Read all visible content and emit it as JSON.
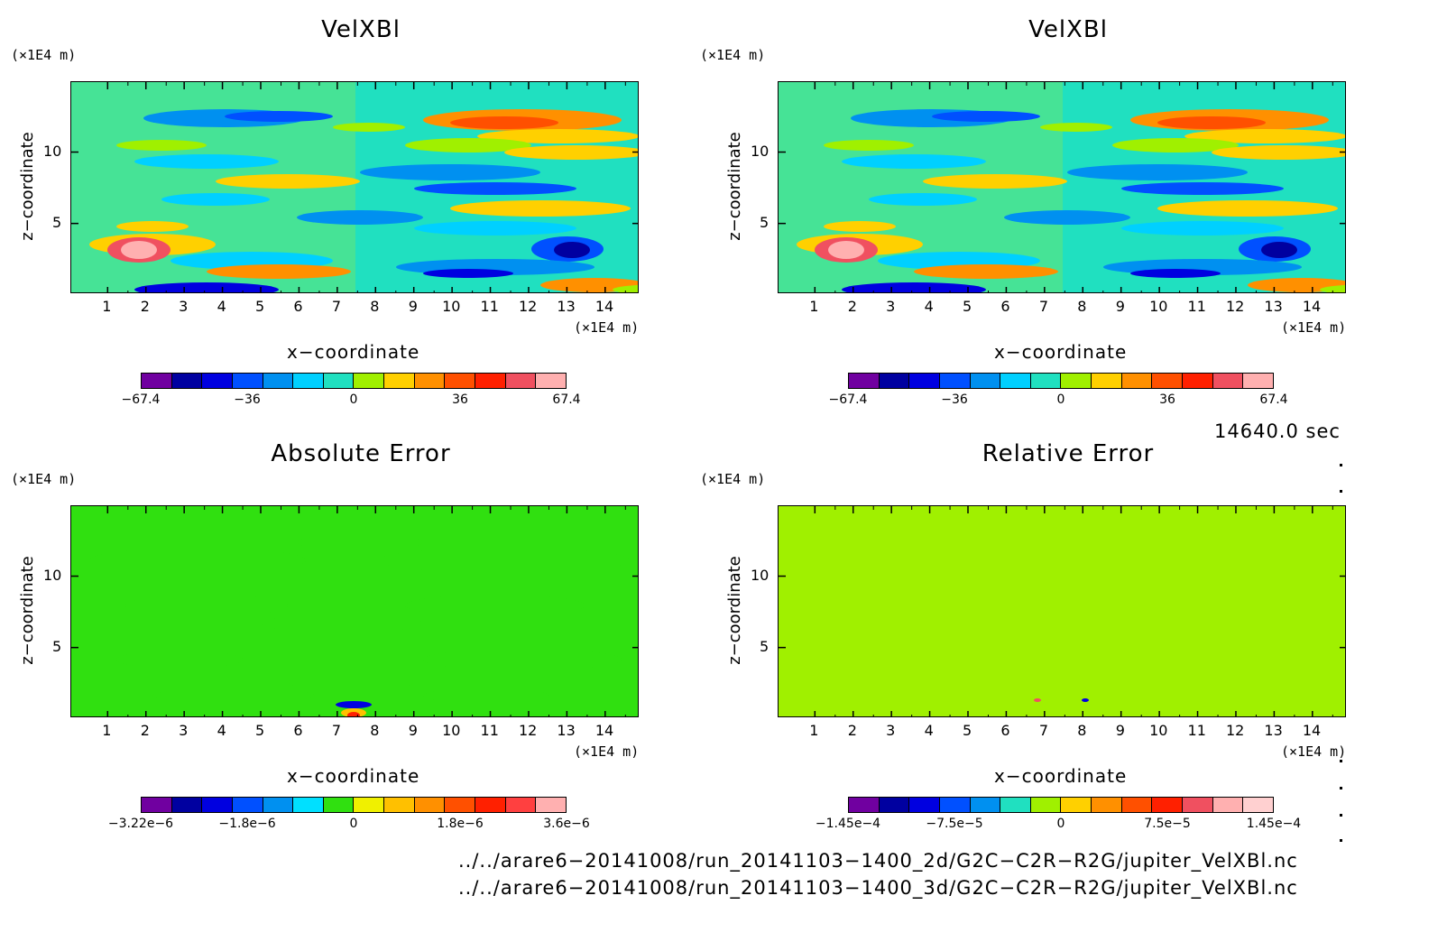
{
  "chart_data": [
    {
      "type": "heatmap",
      "title": "VelXBl",
      "xlabel": "x−coordinate",
      "ylabel": "z−coordinate",
      "x_unit": "(×1E4 m)",
      "y_unit": "(×1E4 m)",
      "xlim": [
        0.05,
        14.9
      ],
      "ylim": [
        0.05,
        14.9
      ],
      "x_ticks": [
        "1",
        "2",
        "3",
        "4",
        "5",
        "6",
        "7",
        "8",
        "9",
        "10",
        "11",
        "12",
        "13",
        "14"
      ],
      "y_ticks": [
        "5",
        "10"
      ],
      "colorbar_labels": [
        "−67.4",
        "−36",
        "0",
        "36",
        "67.4"
      ],
      "colors": [
        "#7000a0",
        "#0000a0",
        "#0000e0",
        "#0050ff",
        "#0090f0",
        "#00d0ff",
        "#20e0c0",
        "#a0f000",
        "#ffd000",
        "#ff9000",
        "#ff5000",
        "#ff2000",
        "#f05060",
        "#ffb0b0"
      ],
      "background_level": 0
    },
    {
      "type": "heatmap",
      "title": "VelXBl",
      "xlabel": "x−coordinate",
      "ylabel": "z−coordinate",
      "x_unit": "(×1E4 m)",
      "y_unit": "(×1E4 m)",
      "xlim": [
        0.05,
        14.9
      ],
      "ylim": [
        0.05,
        14.9
      ],
      "x_ticks": [
        "1",
        "2",
        "3",
        "4",
        "5",
        "6",
        "7",
        "8",
        "9",
        "10",
        "11",
        "12",
        "13",
        "14"
      ],
      "y_ticks": [
        "5",
        "10"
      ],
      "colorbar_labels": [
        "−67.4",
        "−36",
        "0",
        "36",
        "67.4"
      ],
      "colors": [
        "#7000a0",
        "#0000a0",
        "#0000e0",
        "#0050ff",
        "#0090f0",
        "#00d0ff",
        "#20e0c0",
        "#a0f000",
        "#ffd000",
        "#ff9000",
        "#ff5000",
        "#ff2000",
        "#f05060",
        "#ffb0b0"
      ],
      "background_level": 0
    },
    {
      "type": "heatmap",
      "title": "Absolute Error",
      "xlabel": "x−coordinate",
      "ylabel": "z−coordinate",
      "x_unit": "(×1E4 m)",
      "y_unit": "(×1E4 m)",
      "xlim": [
        0.05,
        14.9
      ],
      "ylim": [
        0.05,
        14.9
      ],
      "x_ticks": [
        "1",
        "2",
        "3",
        "4",
        "5",
        "6",
        "7",
        "8",
        "9",
        "10",
        "11",
        "12",
        "13",
        "14"
      ],
      "y_ticks": [
        "5",
        "10"
      ],
      "colorbar_labels": [
        "−3.22e−6",
        "−1.8e−6",
        "0",
        "1.8e−6",
        "3.6e−6"
      ],
      "colors": [
        "#7000a0",
        "#0000a0",
        "#0000e0",
        "#0050ff",
        "#0090f0",
        "#00e0ff",
        "#30e010",
        "#f0f000",
        "#ffc000",
        "#ff9000",
        "#ff5000",
        "#ff2000",
        "#ff4040",
        "#ffb0b0"
      ],
      "background_level": 0
    },
    {
      "type": "heatmap",
      "title": "Relative Error",
      "xlabel": "x−coordinate",
      "ylabel": "z−coordinate",
      "x_unit": "(×1E4 m)",
      "y_unit": "(×1E4 m)",
      "xlim": [
        0.05,
        14.9
      ],
      "ylim": [
        0.05,
        14.9
      ],
      "x_ticks": [
        "1",
        "2",
        "3",
        "4",
        "5",
        "6",
        "7",
        "8",
        "9",
        "10",
        "11",
        "12",
        "13",
        "14"
      ],
      "y_ticks": [
        "5",
        "10"
      ],
      "colorbar_labels": [
        "−1.45e−4",
        "−7.5e−5",
        "0",
        "7.5e−5",
        "1.45e−4"
      ],
      "colors": [
        "#7000a0",
        "#0000a0",
        "#0000e0",
        "#0050ff",
        "#0090f0",
        "#20e0c0",
        "#a0f000",
        "#ffd000",
        "#ff9000",
        "#ff5000",
        "#ff2000",
        "#f05060",
        "#ffb0b0",
        "#ffd0d0"
      ],
      "background_level": 0
    }
  ],
  "time_label": "14640.0 sec",
  "files": [
    "../../arare6−20141008/run_20141103−1400_2d/G2C−C2R−R2G/jupiter_VelXBl.nc",
    "../../arare6−20141008/run_20141103−1400_3d/G2C−C2R−R2G/jupiter_VelXBl.nc"
  ]
}
